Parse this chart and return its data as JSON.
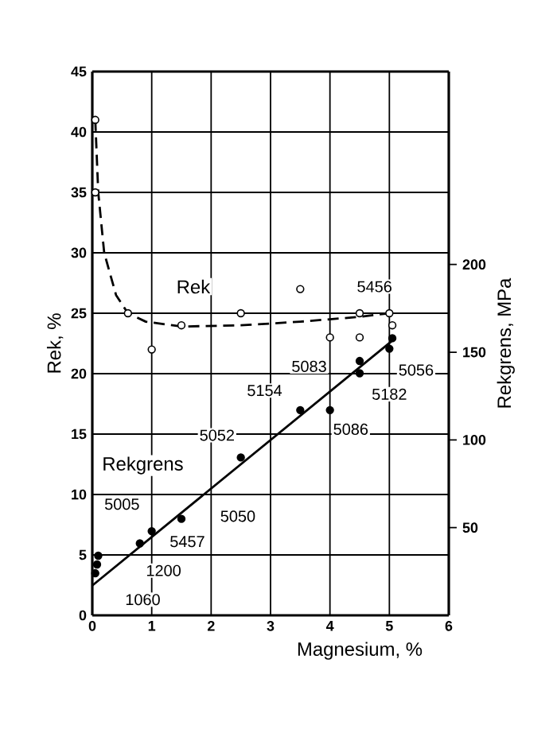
{
  "chart_data": {
    "type": "scatter",
    "xlabel": "Magnesium, %",
    "ylabel": "Rek, %",
    "y2label": "Rekgrens, MPa",
    "xlim": [
      0,
      6
    ],
    "xticks": [
      0,
      1,
      2,
      3,
      4,
      5,
      6
    ],
    "ylim": [
      0,
      45
    ],
    "yticks": [
      0,
      5,
      10,
      15,
      20,
      25,
      30,
      35,
      40,
      45
    ],
    "y2lim": [
      0,
      310
    ],
    "y2ticks": [
      50,
      100,
      150,
      200
    ],
    "grid": true,
    "legend": false,
    "series": [
      {
        "name": "Rek",
        "marker": "circle",
        "color": "#ffffff",
        "x": [
          0.05,
          0.05,
          0.6,
          1.0,
          1.5,
          2.5,
          3.5,
          4.0,
          4.5,
          4.5,
          5.0,
          5.05
        ],
        "values": [
          41,
          35,
          25,
          22,
          24,
          25,
          27,
          23,
          25,
          23,
          25,
          24
        ]
      },
      {
        "type": "line",
        "line_style": "dashed",
        "marker": "none",
        "color": "#000000",
        "x": [
          0.05,
          0.1,
          0.2,
          0.4,
          0.6,
          0.9,
          1.5,
          2.5,
          3.5,
          4.5,
          5.0
        ],
        "values": [
          41,
          35,
          30,
          26.5,
          25,
          24.3,
          23.9,
          24.0,
          24.3,
          24.7,
          25
        ]
      },
      {
        "name": "Rekgrens",
        "marker": "circle",
        "axis": "y2",
        "color": "#000000",
        "x": [
          0.05,
          0.08,
          0.1,
          0.8,
          1.0,
          1.5,
          2.5,
          3.5,
          4.0,
          4.5,
          4.5,
          5.0,
          5.05
        ],
        "values": [
          24,
          29,
          34,
          41,
          48,
          55,
          90,
          117,
          117,
          145,
          138,
          152,
          158
        ]
      },
      {
        "type": "line",
        "line_style": "solid",
        "marker": "none",
        "axis": "y2",
        "color": "#000000",
        "x": [
          0,
          5.1
        ],
        "values": [
          17,
          158
        ]
      }
    ],
    "annotations": [
      "5456",
      "5083",
      "5056",
      "5182",
      "5154",
      "5086",
      "5052",
      "5050",
      "5005",
      "5457",
      "1200",
      "1060"
    ]
  }
}
